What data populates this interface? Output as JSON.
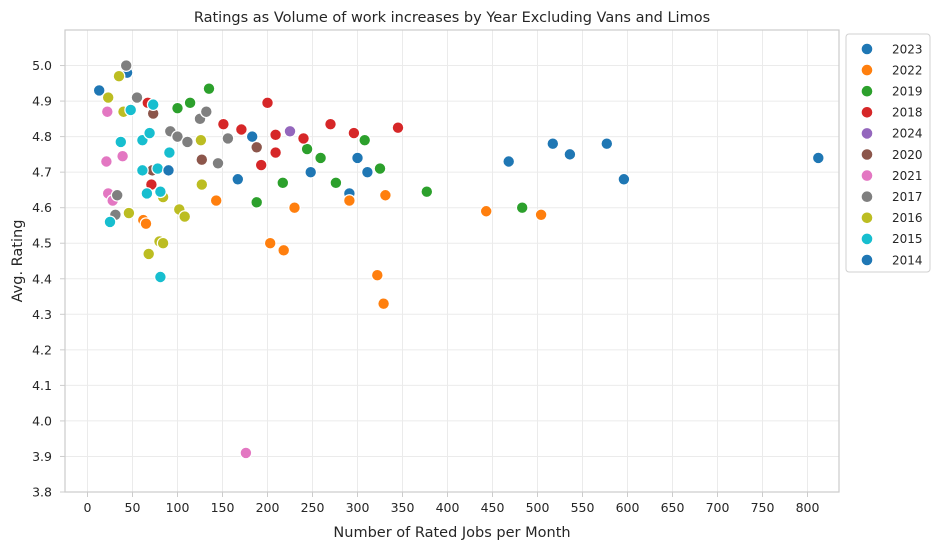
{
  "chart_data": {
    "type": "scatter",
    "title": "Ratings as Volume of work increases by Year Excluding Vans and Limos",
    "xlabel": "Number of Rated Jobs per Month",
    "ylabel": "Avg. Rating",
    "xlim": [
      -25,
      835
    ],
    "ylim": [
      3.8,
      5.1
    ],
    "x_ticks": [
      0,
      50,
      100,
      150,
      200,
      250,
      300,
      350,
      400,
      450,
      500,
      550,
      600,
      650,
      700,
      750,
      800
    ],
    "y_ticks": [
      3.8,
      3.9,
      4.0,
      4.1,
      4.2,
      4.3,
      4.4,
      4.5,
      4.6,
      4.7,
      4.8,
      4.9,
      5.0
    ],
    "grid": true,
    "legend_position": "outside-top-right",
    "series": [
      {
        "name": "2023",
        "color": "#1f77b4",
        "points": [
          [
            44,
            4.98
          ],
          [
            13,
            4.93
          ],
          [
            167,
            4.68
          ],
          [
            183,
            4.8
          ],
          [
            248,
            4.7
          ],
          [
            291,
            4.64
          ],
          [
            300,
            4.74
          ],
          [
            311,
            4.7
          ],
          [
            468,
            4.73
          ],
          [
            517,
            4.78
          ],
          [
            536,
            4.75
          ],
          [
            577,
            4.78
          ],
          [
            596,
            4.68
          ],
          [
            812,
            4.74
          ]
        ]
      },
      {
        "name": "2022",
        "color": "#ff7f0e",
        "points": [
          [
            62,
            4.565
          ],
          [
            65,
            4.555
          ],
          [
            143,
            4.62
          ],
          [
            203,
            4.5
          ],
          [
            218,
            4.48
          ],
          [
            230,
            4.6
          ],
          [
            291,
            4.62
          ],
          [
            331,
            4.635
          ],
          [
            322,
            4.41
          ],
          [
            329,
            4.33
          ],
          [
            443,
            4.59
          ],
          [
            504,
            4.58
          ]
        ]
      },
      {
        "name": "2019",
        "color": "#2ca02c",
        "points": [
          [
            100,
            4.88
          ],
          [
            114,
            4.895
          ],
          [
            135,
            4.935
          ],
          [
            188,
            4.615
          ],
          [
            217,
            4.67
          ],
          [
            244,
            4.765
          ],
          [
            259,
            4.74
          ],
          [
            276,
            4.67
          ],
          [
            308,
            4.79
          ],
          [
            325,
            4.71
          ],
          [
            377,
            4.645
          ],
          [
            483,
            4.6
          ]
        ]
      },
      {
        "name": "2018",
        "color": "#d62728",
        "points": [
          [
            67,
            4.895
          ],
          [
            71,
            4.665
          ],
          [
            151,
            4.835
          ],
          [
            171,
            4.82
          ],
          [
            193,
            4.72
          ],
          [
            200,
            4.895
          ],
          [
            209,
            4.805
          ],
          [
            209,
            4.755
          ],
          [
            240,
            4.795
          ],
          [
            270,
            4.835
          ],
          [
            296,
            4.81
          ],
          [
            345,
            4.825
          ]
        ]
      },
      {
        "name": "2024",
        "color": "#9467bd",
        "points": [
          [
            225,
            4.815
          ]
        ]
      },
      {
        "name": "2020",
        "color": "#8c564b",
        "points": [
          [
            73,
            4.865
          ],
          [
            72,
            4.705
          ],
          [
            127,
            4.735
          ],
          [
            188,
            4.77
          ]
        ]
      },
      {
        "name": "2021",
        "color": "#e377c2",
        "points": [
          [
            22,
            4.87
          ],
          [
            21,
            4.73
          ],
          [
            23,
            4.64
          ],
          [
            28,
            4.62
          ],
          [
            39,
            4.745
          ],
          [
            176,
            3.91
          ]
        ]
      },
      {
        "name": "2017",
        "color": "#7f7f7f",
        "points": [
          [
            43,
            5.0
          ],
          [
            55,
            4.91
          ],
          [
            92,
            4.815
          ],
          [
            100,
            4.8
          ],
          [
            111,
            4.785
          ],
          [
            125,
            4.85
          ],
          [
            132,
            4.87
          ],
          [
            145,
            4.725
          ],
          [
            156,
            4.795
          ],
          [
            31,
            4.58
          ],
          [
            33,
            4.635
          ]
        ]
      },
      {
        "name": "2016",
        "color": "#bcbd22",
        "points": [
          [
            23,
            4.91
          ],
          [
            35,
            4.97
          ],
          [
            40,
            4.87
          ],
          [
            46,
            4.585
          ],
          [
            68,
            4.47
          ],
          [
            80,
            4.505
          ],
          [
            84,
            4.5
          ],
          [
            84,
            4.63
          ],
          [
            102,
            4.595
          ],
          [
            108,
            4.575
          ],
          [
            126,
            4.79
          ],
          [
            127,
            4.665
          ]
        ]
      },
      {
        "name": "2015",
        "color": "#17becf",
        "points": [
          [
            25,
            4.56
          ],
          [
            37,
            4.785
          ],
          [
            48,
            4.875
          ],
          [
            61,
            4.79
          ],
          [
            61,
            4.705
          ],
          [
            66,
            4.64
          ],
          [
            69,
            4.81
          ],
          [
            73,
            4.89
          ],
          [
            78,
            4.71
          ],
          [
            81,
            4.645
          ],
          [
            81,
            4.405
          ],
          [
            91,
            4.755
          ]
        ]
      },
      {
        "name": "2014",
        "color": "#1f77b4",
        "points": [
          [
            90,
            4.705
          ]
        ]
      }
    ]
  }
}
